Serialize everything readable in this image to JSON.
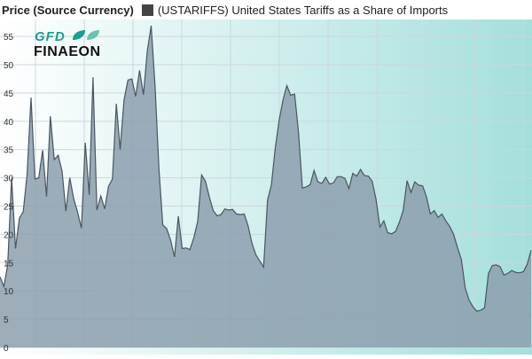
{
  "header": {
    "title": "Price (Source Currency)",
    "legend_label": "(USTARIFFS) United States Tariffs as a Share of Imports",
    "legend_color": "#444444"
  },
  "logo": {
    "line1": "GFD",
    "line2": "FINAEON",
    "color1": "#1a9e8f",
    "color2": "#111111"
  },
  "colors": {
    "bg_left": "#ffffff",
    "bg_right": "#a4dfdc",
    "area_fill": "#8c9fae",
    "line": "#4a5560",
    "grid": "#cdd6dc"
  },
  "chart_data": {
    "type": "area",
    "ylim": [
      0,
      58
    ],
    "y_ticks": [
      0,
      5,
      10,
      15,
      20,
      25,
      30,
      35,
      40,
      45,
      50,
      55
    ],
    "grid": true,
    "series": [
      {
        "name": "(USTARIFFS) United States Tariffs as a Share of Imports",
        "values": [
          12.5,
          10.8,
          14.6,
          30,
          17.5,
          22.9,
          24,
          30.7,
          44.2,
          29.8,
          30,
          34.9,
          26.7,
          40.9,
          33.2,
          34,
          31.2,
          24.1,
          30,
          26.3,
          24,
          21.1,
          36.2,
          27,
          47.8,
          24.3,
          26.8,
          24.5,
          28.5,
          29.8,
          43.1,
          35,
          43.8,
          47.3,
          47.5,
          44.4,
          49,
          44.7,
          52.4,
          56.9,
          46.2,
          31.5,
          21.7,
          21,
          19,
          16,
          23.2,
          17.5,
          17.6,
          17.3,
          19.4,
          22.3,
          30.5,
          29.4,
          26.6,
          24.2,
          23.3,
          23.5,
          24.5,
          24.3,
          24.4,
          23.6,
          23.5,
          23.6,
          21.5,
          18.4,
          16.4,
          15.3,
          14.2,
          26,
          28.8,
          35.2,
          40.2,
          43.8,
          46.3,
          44.6,
          44.8,
          38,
          28.2,
          28.4,
          28.8,
          31.3,
          29.3,
          29,
          30.1,
          28.9,
          29.1,
          30.2,
          30.2,
          29.9,
          28.1,
          30.8,
          30.3,
          31.5,
          30.4,
          30.3,
          29.4,
          26.2,
          21.3,
          22.4,
          20.3,
          20.1,
          20.5,
          22.1,
          24.2,
          29.5,
          27.4,
          29.3,
          28.7,
          28.6,
          26.7,
          23.6,
          24.2,
          23,
          23.6,
          22.4,
          21.4,
          20,
          17.7,
          15.6,
          10.5,
          8.4,
          7.2,
          6.4,
          6.6,
          7,
          13.1,
          14.5,
          14.6,
          14.3,
          12.8,
          13.1,
          13.6,
          13.3,
          13.2,
          13.4,
          14.7,
          17.2
        ]
      }
    ]
  }
}
